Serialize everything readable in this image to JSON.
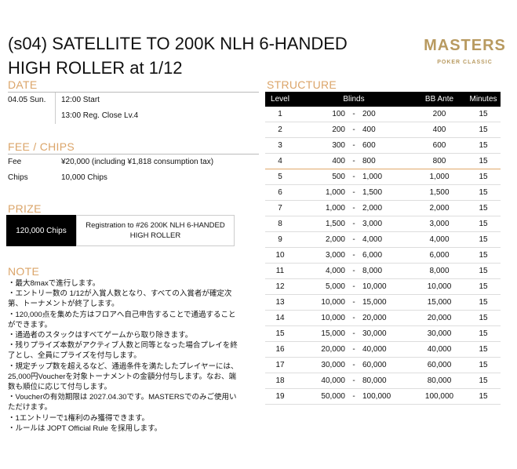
{
  "title_lines": [
    "(s04) SATELLITE TO 200K NLH 6-HANDED",
    "HIGH ROLLER at 1/12"
  ],
  "logo": {
    "main": "MASTERS",
    "sub": "POKER CLASSIC"
  },
  "date": {
    "heading": "DATE",
    "day": "04.05 Sun.",
    "start": "12:00 Start",
    "close": "13:00 Reg. Close Lv.4"
  },
  "fee": {
    "heading": "FEE / CHIPS",
    "fee_label": "Fee",
    "fee_value": "¥20,000 (including ¥1,818 consumption tax)",
    "chips_label": "Chips",
    "chips_value": "10,000 Chips"
  },
  "prize": {
    "heading": "PRIZE",
    "chips": "120,000 Chips",
    "reward": "Registration to #26 200K NLH 6-HANDED HIGH ROLLER"
  },
  "note": {
    "heading": "NOTE",
    "lines": [
      "・最大8maxで進行します。",
      "・エントリー数の 1/12が入賞人数となり、すべての入賞者が確定次第、トーナメントが終了します。",
      "・120,000点を集めた方はフロアへ自己申告することで通過することができます。",
      "・通過者のスタックはすべてゲームから取り除きます。",
      "・残りプライズ本数がアクティブ人数と同等となった場合プレイを終了とし、全員にプライズを付与します。",
      "・規定チップ数を超えるなど、通過条件を満たしたプレイヤーには、25,000円Voucherを対象トーナメントの金額分付与します。なお、端数も順位に応じて付与します。",
      "・Voucherの有効期限は 2027.04.30です。MASTERSでのみご使用いただけます。",
      "・1エントリーで1権利のみ獲得できます。",
      "・ルールは JOPT Official Rule を採用します。"
    ]
  },
  "structure": {
    "heading": "STRUCTURE",
    "columns": [
      "Level",
      "Blinds",
      "BB Ante",
      "Minutes"
    ],
    "rows": [
      [
        "1",
        "100",
        "200",
        "200",
        "15"
      ],
      [
        "2",
        "200",
        "400",
        "400",
        "15"
      ],
      [
        "3",
        "300",
        "600",
        "600",
        "15"
      ],
      [
        "4",
        "400",
        "800",
        "800",
        "15"
      ],
      [
        "5",
        "500",
        "1,000",
        "1,000",
        "15"
      ],
      [
        "6",
        "1,000",
        "1,500",
        "1,500",
        "15"
      ],
      [
        "7",
        "1,000",
        "2,000",
        "2,000",
        "15"
      ],
      [
        "8",
        "1,500",
        "3,000",
        "3,000",
        "15"
      ],
      [
        "9",
        "2,000",
        "4,000",
        "4,000",
        "15"
      ],
      [
        "10",
        "3,000",
        "6,000",
        "6,000",
        "15"
      ],
      [
        "11",
        "4,000",
        "8,000",
        "8,000",
        "15"
      ],
      [
        "12",
        "5,000",
        "10,000",
        "10,000",
        "15"
      ],
      [
        "13",
        "10,000",
        "15,000",
        "15,000",
        "15"
      ],
      [
        "14",
        "10,000",
        "20,000",
        "20,000",
        "15"
      ],
      [
        "15",
        "15,000",
        "30,000",
        "30,000",
        "15"
      ],
      [
        "16",
        "20,000",
        "40,000",
        "40,000",
        "15"
      ],
      [
        "17",
        "30,000",
        "60,000",
        "60,000",
        "15"
      ],
      [
        "18",
        "40,000",
        "80,000",
        "80,000",
        "15"
      ],
      [
        "19",
        "50,000",
        "100,000",
        "100,000",
        "15"
      ]
    ],
    "break_after_level": "4"
  },
  "colors": {
    "accent": "#dba56a",
    "logo": "#b89a60"
  }
}
